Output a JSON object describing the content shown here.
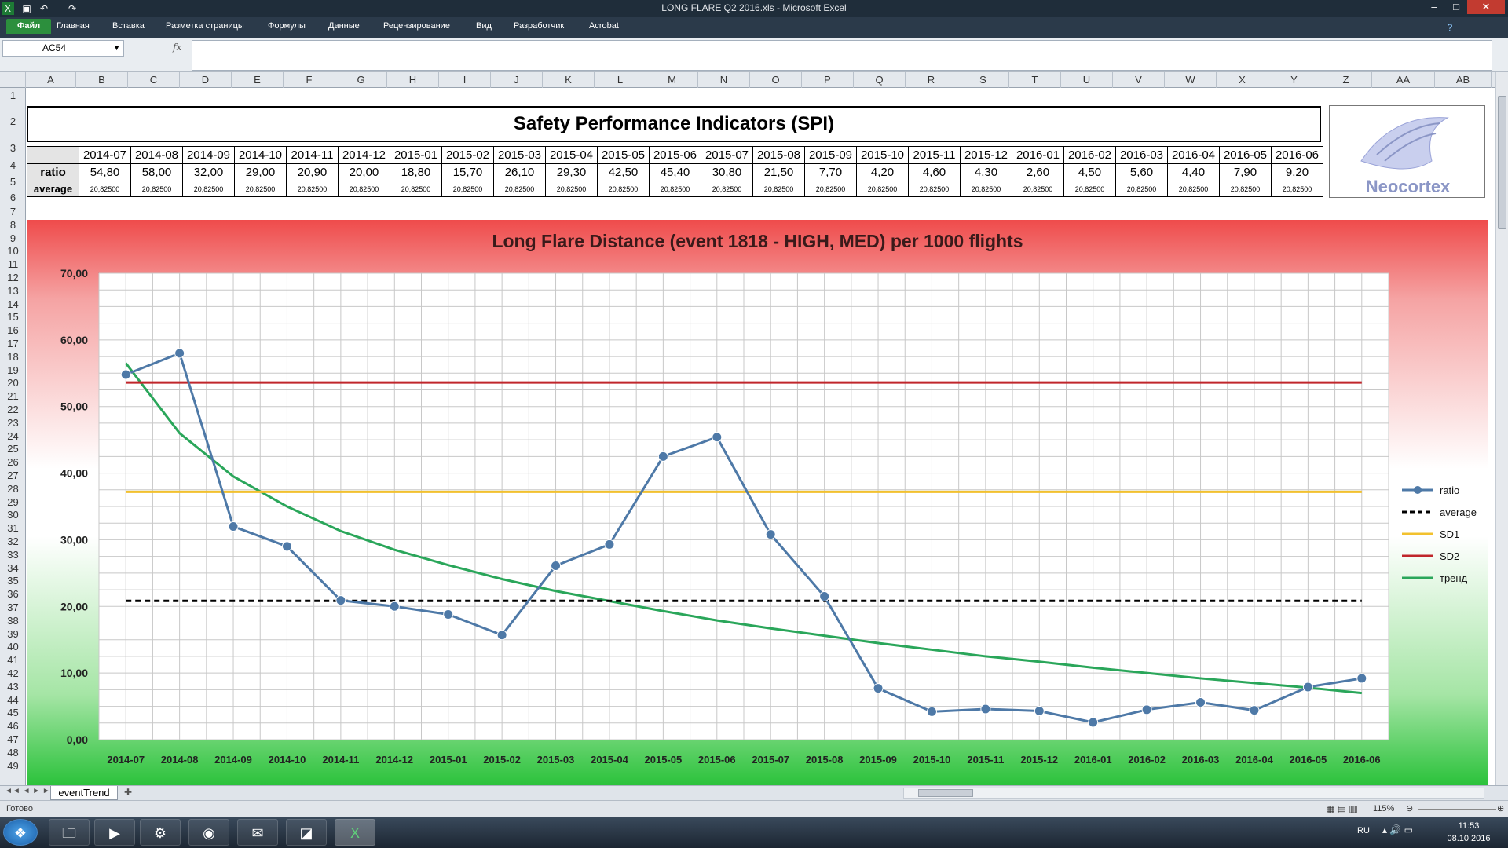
{
  "window": {
    "title": "LONG FLARE Q2 2016.xls - Microsoft Excel"
  },
  "ribbon": {
    "tabs": [
      "Файл",
      "Главная",
      "Вставка",
      "Разметка страницы",
      "Формулы",
      "Данные",
      "Рецензирование",
      "Вид",
      "Разработчик",
      "Acrobat"
    ]
  },
  "formula_bar": {
    "name_box": "AC54",
    "fx": "fx"
  },
  "columns": [
    "A",
    "B",
    "C",
    "D",
    "E",
    "F",
    "G",
    "H",
    "I",
    "J",
    "K",
    "L",
    "M",
    "N",
    "O",
    "P",
    "Q",
    "R",
    "S",
    "T",
    "U",
    "V",
    "W",
    "X",
    "Y",
    "Z",
    "AA",
    "AB"
  ],
  "rows": [
    "1",
    "2",
    "3",
    "4",
    "5",
    "6",
    "7",
    "8",
    "9",
    "10",
    "11",
    "12",
    "13",
    "14",
    "15",
    "16",
    "17",
    "18",
    "19",
    "20",
    "21",
    "22",
    "23",
    "24",
    "25",
    "26",
    "27",
    "28",
    "29",
    "30",
    "31",
    "32",
    "33",
    "34",
    "35",
    "36",
    "37",
    "38",
    "39",
    "40",
    "41",
    "42",
    "43",
    "44",
    "45",
    "46",
    "47",
    "48",
    "49"
  ],
  "spi": {
    "title": "Safety Performance Indicators (SPI)",
    "ratio_label": "ratio",
    "average_label": "average",
    "months": [
      "2014-07",
      "2014-08",
      "2014-09",
      "2014-10",
      "2014-11",
      "2014-12",
      "2015-01",
      "2015-02",
      "2015-03",
      "2015-04",
      "2015-05",
      "2015-06",
      "2015-07",
      "2015-08",
      "2015-09",
      "2015-10",
      "2015-11",
      "2015-12",
      "2016-01",
      "2016-02",
      "2016-03",
      "2016-04",
      "2016-05",
      "2016-06"
    ],
    "ratio_values": [
      "54,80",
      "58,00",
      "32,00",
      "29,00",
      "20,90",
      "20,00",
      "18,80",
      "15,70",
      "26,10",
      "29,30",
      "42,50",
      "45,40",
      "30,80",
      "21,50",
      "7,70",
      "4,20",
      "4,60",
      "4,30",
      "2,60",
      "4,50",
      "5,60",
      "4,40",
      "7,90",
      "9,20"
    ],
    "average_value": "20,82500"
  },
  "logo": {
    "text": "Neocortex"
  },
  "chart_data": {
    "type": "line",
    "title": "Long Flare Distance  (event 1818 - HIGH, MED) per 1000 flights",
    "categories": [
      "2014-07",
      "2014-08",
      "2014-09",
      "2014-10",
      "2014-11",
      "2014-12",
      "2015-01",
      "2015-02",
      "2015-03",
      "2015-04",
      "2015-05",
      "2015-06",
      "2015-07",
      "2015-08",
      "2015-09",
      "2015-10",
      "2015-11",
      "2015-12",
      "2016-01",
      "2016-02",
      "2016-03",
      "2016-04",
      "2016-05",
      "2016-06"
    ],
    "y_ticks": [
      "0,00",
      "10,00",
      "20,00",
      "30,00",
      "40,00",
      "50,00",
      "60,00",
      "70,00"
    ],
    "ylim": [
      0,
      70
    ],
    "grid": true,
    "legend_position": "right",
    "series": [
      {
        "name": "ratio",
        "color": "#4e79a7",
        "markers": true,
        "values": [
          54.8,
          58.0,
          32.0,
          29.0,
          20.9,
          20.0,
          18.8,
          15.7,
          26.1,
          29.3,
          42.5,
          45.4,
          30.8,
          21.5,
          7.7,
          4.2,
          4.6,
          4.3,
          2.6,
          4.5,
          5.6,
          4.4,
          7.9,
          9.2
        ]
      },
      {
        "name": "average",
        "color": "#000000",
        "dash": true,
        "values": [
          20.825,
          20.825,
          20.825,
          20.825,
          20.825,
          20.825,
          20.825,
          20.825,
          20.825,
          20.825,
          20.825,
          20.825,
          20.825,
          20.825,
          20.825,
          20.825,
          20.825,
          20.825,
          20.825,
          20.825,
          20.825,
          20.825,
          20.825,
          20.825
        ]
      },
      {
        "name": "SD1",
        "color": "#f2c12e",
        "values": [
          37.2,
          37.2,
          37.2,
          37.2,
          37.2,
          37.2,
          37.2,
          37.2,
          37.2,
          37.2,
          37.2,
          37.2,
          37.2,
          37.2,
          37.2,
          37.2,
          37.2,
          37.2,
          37.2,
          37.2,
          37.2,
          37.2,
          37.2,
          37.2
        ]
      },
      {
        "name": "SD2",
        "color": "#c0262b",
        "values": [
          53.6,
          53.6,
          53.6,
          53.6,
          53.6,
          53.6,
          53.6,
          53.6,
          53.6,
          53.6,
          53.6,
          53.6,
          53.6,
          53.6,
          53.6,
          53.6,
          53.6,
          53.6,
          53.6,
          53.6,
          53.6,
          53.6,
          53.6,
          53.6
        ]
      },
      {
        "name": "тренд",
        "color": "#2aa65a",
        "values": [
          56.5,
          46.0,
          39.5,
          35.0,
          31.3,
          28.5,
          26.2,
          24.1,
          22.3,
          20.8,
          19.3,
          17.9,
          16.7,
          15.6,
          14.5,
          13.5,
          12.5,
          11.7,
          10.8,
          10.0,
          9.2,
          8.5,
          7.8,
          7.0
        ]
      }
    ]
  },
  "sheet_tabs": {
    "active": "eventTrend"
  },
  "status": {
    "ready": "Готово",
    "zoom": "115%",
    "lang": "RU",
    "time": "11:53",
    "date": "08.10.2016"
  }
}
